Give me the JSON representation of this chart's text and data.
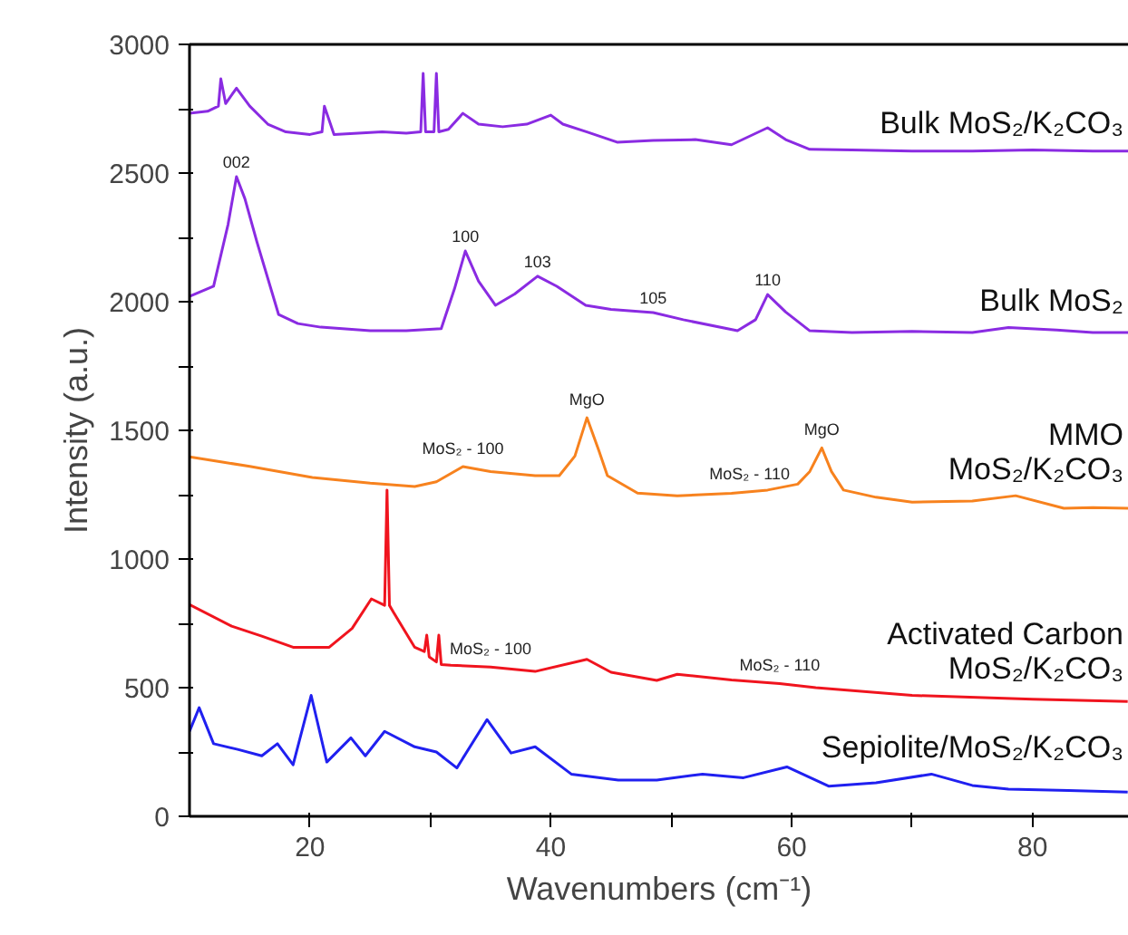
{
  "chart_data": {
    "type": "line",
    "xlabel": "Wavenumbers (cm⁻¹)",
    "ylabel": "Intensity (a.u.)",
    "xlim": [
      10,
      88
    ],
    "ylim": [
      0,
      3000
    ],
    "xticks": [
      20,
      {
        "value": 30,
        "label": null
      },
      40,
      {
        "value": 50,
        "label": null
      },
      60,
      {
        "value": 70,
        "label": null
      },
      80
    ],
    "yticks": [
      0,
      {
        "value": 250,
        "label": null
      },
      500,
      {
        "value": 750,
        "label": null
      },
      1000,
      {
        "value": 1250,
        "label": null
      },
      1500,
      {
        "value": 1750,
        "label": null
      },
      2000,
      {
        "value": 2250,
        "label": null
      },
      2500,
      {
        "value": 2750,
        "label": null
      },
      3000
    ],
    "grid": false,
    "marker": "none",
    "line_style": "solid",
    "series": [
      {
        "name": "Bulk MoS₂/K₂CO₃",
        "color": "#8a2be2",
        "x": [
          10,
          11.5,
          12.4,
          12.6,
          13,
          13.9,
          15,
          16.5,
          18,
          20,
          21,
          21.2,
          22,
          24,
          26,
          28,
          29.2,
          29.4,
          29.6,
          30.3,
          30.5,
          30.7,
          31.5,
          32.7,
          34,
          36,
          38,
          40,
          41,
          43,
          45.5,
          48.5,
          52,
          55,
          58,
          59.5,
          61.5,
          65,
          70,
          75,
          80,
          85,
          88
        ],
        "values": [
          2732,
          2740,
          2760,
          2866,
          2770,
          2830,
          2760,
          2690,
          2660,
          2650,
          2660,
          2760,
          2650,
          2655,
          2660,
          2655,
          2660,
          2887,
          2660,
          2660,
          2887,
          2660,
          2670,
          2732,
          2690,
          2680,
          2690,
          2725,
          2690,
          2660,
          2620,
          2627,
          2630,
          2610,
          2676,
          2630,
          2592,
          2590,
          2585,
          2585,
          2590,
          2585,
          2585
        ]
      },
      {
        "name": "Bulk MoS₂",
        "color": "#8a2be2",
        "x": [
          10,
          12,
          13.2,
          13.9,
          14.6,
          15.6,
          17.4,
          19,
          20.9,
          25,
          28,
          30.9,
          32,
          32.9,
          34,
          35.4,
          37,
          38.9,
          40.5,
          42.9,
          45,
          48.5,
          51,
          55.5,
          57,
          58,
          59.5,
          61.5,
          65,
          70,
          75,
          78,
          82,
          85,
          88
        ],
        "values": [
          2021,
          2060,
          2300,
          2486,
          2400,
          2232,
          1950,
          1915,
          1901,
          1887,
          1887,
          1895,
          2050,
          2197,
          2080,
          1986,
          2030,
          2099,
          2060,
          1986,
          1970,
          1958,
          1930,
          1887,
          1930,
          2028,
          1960,
          1887,
          1880,
          1885,
          1880,
          1900,
          1890,
          1880,
          1880
        ]
      },
      {
        "name": "MMO\nMoS₂/K₂CO₃",
        "color": "#f7821e",
        "x": [
          10,
          15,
          20.2,
          25,
          28.7,
          30.5,
          32.7,
          35,
          38.7,
          40.7,
          42,
          43,
          44,
          44.7,
          47.2,
          50.5,
          55,
          58,
          60.5,
          61.5,
          62.5,
          63.3,
          64.3,
          67,
          70,
          75,
          78.6,
          82.6,
          85,
          88
        ],
        "values": [
          1397,
          1360,
          1317,
          1295,
          1282,
          1300,
          1359,
          1340,
          1324,
          1324,
          1400,
          1549,
          1420,
          1324,
          1256,
          1246,
          1255,
          1268,
          1291,
          1340,
          1432,
          1340,
          1268,
          1240,
          1221,
          1225,
          1246,
          1197,
          1200,
          1197
        ]
      },
      {
        "name": "Activated Carbon\nMoS₂/K₂CO₃",
        "color": "#f0141e",
        "x": [
          10,
          13.5,
          16,
          18.6,
          21.6,
          23.5,
          25.1,
          26.2,
          26.4,
          26.6,
          26.9,
          28.7,
          29.5,
          29.7,
          29.9,
          30.5,
          30.7,
          30.9,
          31.7,
          35,
          38.7,
          43,
          45,
          48.8,
          50.5,
          55,
          59,
          62,
          70,
          80,
          87.9
        ],
        "values": [
          823,
          739,
          700,
          657,
          657,
          730,
          845,
          820,
          1268,
          820,
          796,
          657,
          640,
          704,
          620,
          600,
          704,
          590,
          587,
          580,
          563,
          610,
          560,
          528,
          552,
          530,
          516,
          500,
          470,
          455,
          446
        ]
      },
      {
        "name": "Sepiolite/MoS₂/K₂CO₃",
        "color": "#2020f0",
        "x": [
          10,
          10.8,
          12,
          14,
          16,
          17.3,
          18.6,
          20.1,
          21.4,
          23.4,
          24.6,
          26.2,
          28.7,
          30.5,
          32.2,
          34.7,
          36.7,
          38.7,
          41.7,
          45.6,
          48.8,
          52.6,
          56,
          59.6,
          63.1,
          67,
          71.6,
          75,
          78,
          83,
          87.9
        ],
        "values": [
          330,
          422,
          282,
          260,
          235,
          282,
          200,
          470,
          211,
          305,
          235,
          330,
          270,
          250,
          188,
          376,
          246,
          270,
          164,
          141,
          141,
          164,
          150,
          192,
          117,
          130,
          164,
          120,
          106,
          100,
          94
        ]
      }
    ],
    "annotations": [
      {
        "text": "002",
        "x": 13.9,
        "y": 2486
      },
      {
        "text": "100",
        "x": 32.9,
        "y": 2197
      },
      {
        "text": "103",
        "x": 38.9,
        "y": 2099
      },
      {
        "text": "105",
        "x": 48.5,
        "y": 1958
      },
      {
        "text": "110",
        "x": 58,
        "y": 2028
      },
      {
        "text": "MoS₂ - 100",
        "x": 32.7,
        "y": 1359
      },
      {
        "text": "MgO",
        "x": 43,
        "y": 1549
      },
      {
        "text": "MoS₂ - 110",
        "x": 56.5,
        "y": 1261
      },
      {
        "text": "MgO",
        "x": 62.5,
        "y": 1432
      },
      {
        "text": "MoS₂ - 100",
        "x": 35,
        "y": 580
      },
      {
        "text": "MoS₂ - 110",
        "x": 59,
        "y": 516
      }
    ]
  }
}
